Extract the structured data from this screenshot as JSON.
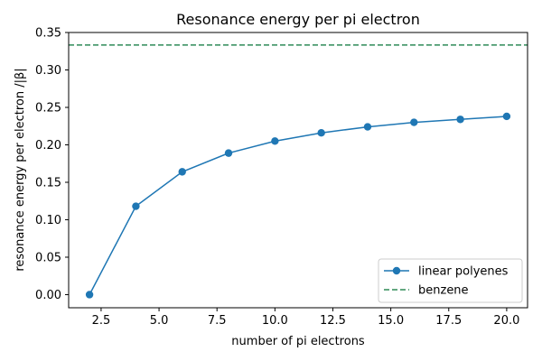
{
  "chart_data": {
    "type": "line",
    "title": "Resonance energy per pi electron",
    "xlabel": "number of pi electrons",
    "ylabel": "resonance energy per electron /|β|",
    "xlim": [
      1.1,
      20.9
    ],
    "ylim": [
      -0.0175,
      0.35
    ],
    "xticks": [
      2.5,
      5.0,
      7.5,
      10.0,
      12.5,
      15.0,
      17.5,
      20.0
    ],
    "xtick_labels": [
      "2.5",
      "5.0",
      "7.5",
      "10.0",
      "12.5",
      "15.0",
      "17.5",
      "20.0"
    ],
    "yticks": [
      0.0,
      0.05,
      0.1,
      0.15,
      0.2,
      0.25,
      0.3,
      0.35
    ],
    "ytick_labels": [
      "0.00",
      "0.05",
      "0.10",
      "0.15",
      "0.20",
      "0.25",
      "0.30",
      "0.35"
    ],
    "grid": false,
    "legend_position": "lower-right",
    "series": [
      {
        "name": "linear polyenes",
        "style": "line-with-markers",
        "color": "#1f77b4",
        "x": [
          2,
          4,
          6,
          8,
          10,
          12,
          14,
          16,
          18,
          20
        ],
        "y": [
          0.0,
          0.118,
          0.164,
          0.189,
          0.205,
          0.216,
          0.224,
          0.23,
          0.234,
          0.238
        ]
      },
      {
        "name": "benzene",
        "style": "dashed-horizontal",
        "color": "#2e8b57",
        "y": 0.3333
      }
    ]
  }
}
